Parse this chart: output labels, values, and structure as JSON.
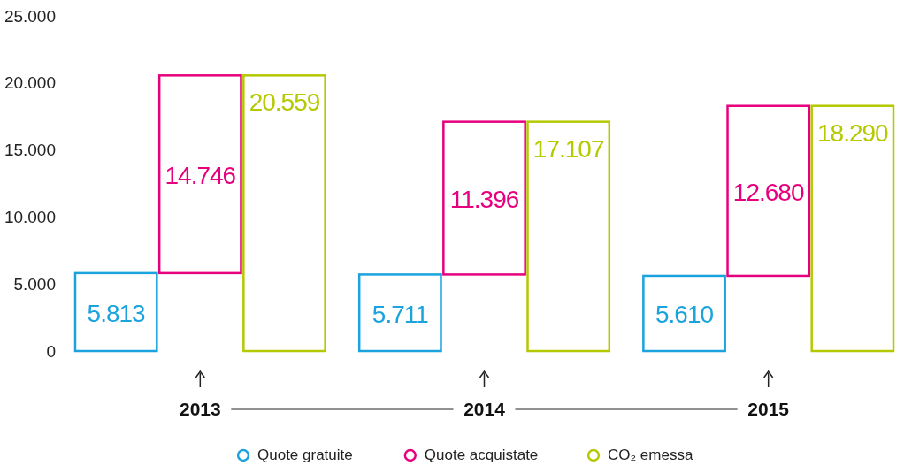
{
  "chart_data": {
    "type": "bar",
    "categories": [
      "2013",
      "2014",
      "2015"
    ],
    "series": [
      {
        "name": "Quote gratuite",
        "color": "#1aa3dd",
        "values": [
          5813,
          5711,
          5610
        ],
        "value_labels": [
          "5.813",
          "5.711",
          "5.610"
        ]
      },
      {
        "name": "Quote acquistate",
        "color": "#e6007e",
        "values": [
          14746,
          11396,
          12680
        ],
        "base": [
          5813,
          5711,
          5610
        ],
        "value_labels": [
          "14.746",
          "11.396",
          "12.680"
        ]
      },
      {
        "name": "CO₂ emessa",
        "color": "#b5c900",
        "values": [
          20559,
          17107,
          18290
        ],
        "value_labels": [
          "20.559",
          "17.107",
          "18.290"
        ]
      }
    ],
    "ylim": [
      0,
      25000
    ],
    "yticks": [
      {
        "value": 0,
        "label": "0"
      },
      {
        "value": 5000,
        "label": "5.000"
      },
      {
        "value": 10000,
        "label": "10.000"
      },
      {
        "value": 15000,
        "label": "15.000"
      },
      {
        "value": 20000,
        "label": "20.000"
      },
      {
        "value": 25000,
        "label": "25.000"
      }
    ],
    "legend": "bottom",
    "marker": "circle",
    "grid": false
  }
}
